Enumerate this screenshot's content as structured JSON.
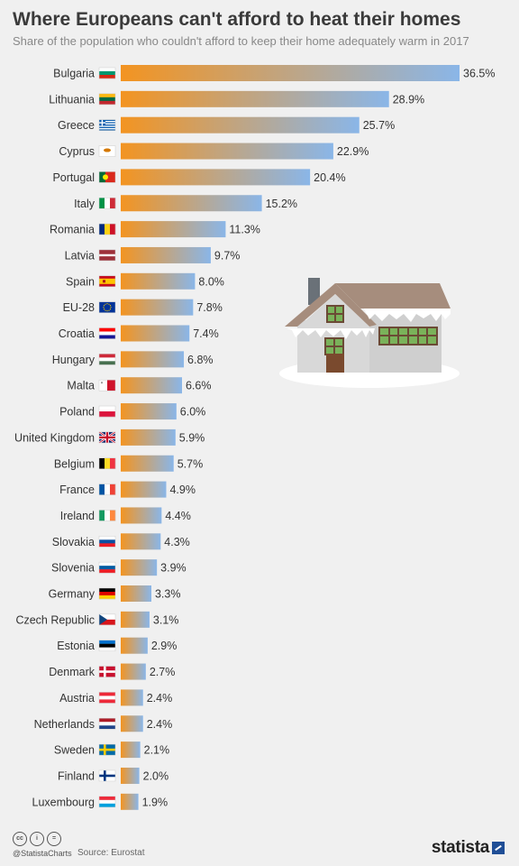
{
  "title": "Where Europeans can't afford to heat their homes",
  "subtitle": "Share of the population who couldn't afford to keep their home adequately warm in 2017",
  "footer": {
    "handle": "@StatistaCharts",
    "source": "Source: Eurostat",
    "logo": "statista",
    "license_icons": [
      "cc",
      "i",
      "="
    ]
  },
  "colors": {
    "bar_start": "#f39421",
    "bar_end": "#8ab6e8",
    "background": "#f0f0f0"
  },
  "chart_data": {
    "type": "bar",
    "orientation": "horizontal",
    "categories": [
      "Bulgaria",
      "Lithuania",
      "Greece",
      "Cyprus",
      "Portugal",
      "Italy",
      "Romania",
      "Latvia",
      "Spain",
      "EU-28",
      "Croatia",
      "Hungary",
      "Malta",
      "Poland",
      "United Kingdom",
      "Belgium",
      "France",
      "Ireland",
      "Slovakia",
      "Slovenia",
      "Germany",
      "Czech Republic",
      "Estonia",
      "Denmark",
      "Austria",
      "Netherlands",
      "Sweden",
      "Finland",
      "Luxembourg"
    ],
    "values": [
      36.5,
      28.9,
      25.7,
      22.9,
      20.4,
      15.2,
      11.3,
      9.7,
      8.0,
      7.8,
      7.4,
      6.8,
      6.6,
      6.0,
      5.9,
      5.7,
      4.9,
      4.4,
      4.3,
      3.9,
      3.3,
      3.1,
      2.9,
      2.7,
      2.4,
      2.4,
      2.1,
      2.0,
      1.9
    ],
    "value_labels": [
      "36.5%",
      "28.9%",
      "25.7%",
      "22.9%",
      "20.4%",
      "15.2%",
      "11.3%",
      "9.7%",
      "8.0%",
      "7.8%",
      "7.4%",
      "6.8%",
      "6.6%",
      "6.0%",
      "5.9%",
      "5.7%",
      "4.9%",
      "4.4%",
      "4.3%",
      "3.9%",
      "3.3%",
      "3.1%",
      "2.9%",
      "2.7%",
      "2.4%",
      "2.4%",
      "2.1%",
      "2.0%",
      "1.9%"
    ],
    "flags": [
      {
        "type": "h",
        "colors": [
          "#ffffff",
          "#00966e",
          "#d62612"
        ]
      },
      {
        "type": "h",
        "colors": [
          "#fdb913",
          "#006a44",
          "#c1272d"
        ]
      },
      {
        "type": "greece"
      },
      {
        "type": "plain",
        "colors": [
          "#ffffff"
        ],
        "mark": "#d57800"
      },
      {
        "type": "portugal"
      },
      {
        "type": "v",
        "colors": [
          "#009246",
          "#ffffff",
          "#ce2b37"
        ]
      },
      {
        "type": "v",
        "colors": [
          "#002b7f",
          "#fcd116",
          "#ce1126"
        ]
      },
      {
        "type": "latvia"
      },
      {
        "type": "spain"
      },
      {
        "type": "eu"
      },
      {
        "type": "h",
        "colors": [
          "#ff0000",
          "#ffffff",
          "#171796"
        ]
      },
      {
        "type": "h",
        "colors": [
          "#ce2939",
          "#ffffff",
          "#477050"
        ]
      },
      {
        "type": "malta"
      },
      {
        "type": "h",
        "colors": [
          "#ffffff",
          "#dc143c"
        ]
      },
      {
        "type": "uk"
      },
      {
        "type": "v",
        "colors": [
          "#000000",
          "#fdda24",
          "#ef3340"
        ]
      },
      {
        "type": "v",
        "colors": [
          "#0055a4",
          "#ffffff",
          "#ef4135"
        ]
      },
      {
        "type": "v",
        "colors": [
          "#169b62",
          "#ffffff",
          "#ff883e"
        ]
      },
      {
        "type": "h",
        "colors": [
          "#ffffff",
          "#0b4ea2",
          "#ee1c25"
        ]
      },
      {
        "type": "h",
        "colors": [
          "#ffffff",
          "#005da4",
          "#ed1c24"
        ]
      },
      {
        "type": "h",
        "colors": [
          "#000000",
          "#dd0000",
          "#ffce00"
        ]
      },
      {
        "type": "czech"
      },
      {
        "type": "h",
        "colors": [
          "#0072ce",
          "#000000",
          "#ffffff"
        ]
      },
      {
        "type": "nordic",
        "colors": [
          "#c8102e",
          "#ffffff"
        ]
      },
      {
        "type": "h",
        "colors": [
          "#ed2939",
          "#ffffff",
          "#ed2939"
        ]
      },
      {
        "type": "h",
        "colors": [
          "#ae1c28",
          "#ffffff",
          "#21468b"
        ]
      },
      {
        "type": "nordic",
        "colors": [
          "#006aa7",
          "#fecc00"
        ]
      },
      {
        "type": "nordic",
        "colors": [
          "#ffffff",
          "#003580"
        ]
      },
      {
        "type": "h",
        "colors": [
          "#ed2939",
          "#ffffff",
          "#00a1de"
        ]
      }
    ],
    "xlim": [
      0,
      36.5
    ],
    "grid": false,
    "legend": "none"
  }
}
